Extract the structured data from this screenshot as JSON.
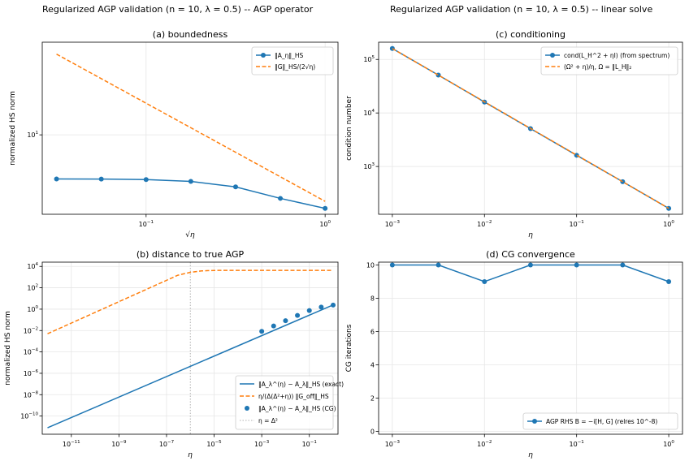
{
  "suptitles": {
    "left": "Regularized AGP validation (n = 10, λ = 0.5) -- AGP operator",
    "right": "Regularized AGP validation (n = 10, λ = 0.5) -- linear solve"
  },
  "colors": {
    "blue": "#1f77b4",
    "orange": "#ff7f0e",
    "grid": "#e6e6e6",
    "vline": "#b0b0b0"
  },
  "chart_data": [
    {
      "id": "a",
      "type": "line",
      "title": "(a) boundedness",
      "xlabel": "√η",
      "ylabel": "normalized HS norm",
      "xscale": "log",
      "yscale": "log",
      "xlim": [
        0.0263,
        1.18
      ],
      "ylim": [
        1.55,
        88
      ],
      "xticks": [
        {
          "v": 0.1,
          "label": "10^-1"
        },
        {
          "v": 1,
          "label": "10^0"
        }
      ],
      "yticks": [
        {
          "v": 10,
          "label": "10^1"
        }
      ],
      "grid": true,
      "legend": "top-right",
      "series": [
        {
          "name": "‖A_η‖_HS",
          "style": "line-marker",
          "color": "#1f77b4",
          "x": [
            0.0316,
            0.0562,
            0.1,
            0.1778,
            0.3162,
            0.5623,
            1.0
          ],
          "y": [
            3.55,
            3.54,
            3.5,
            3.35,
            2.95,
            2.25,
            1.78
          ]
        },
        {
          "name": "‖G‖_HS/(2√η)",
          "style": "dashed",
          "color": "#ff7f0e",
          "x": [
            0.0316,
            1.0
          ],
          "y": [
            66.5,
            2.1
          ]
        }
      ]
    },
    {
      "id": "c",
      "type": "line",
      "title": "(c) conditioning",
      "xlabel": "η",
      "ylabel": "condition number",
      "xscale": "log",
      "yscale": "log",
      "xlim": [
        0.00071,
        1.41
      ],
      "ylim": [
        128,
        210000
      ],
      "xticks": [
        {
          "v": 0.001,
          "label": "10^-3"
        },
        {
          "v": 0.01,
          "label": "10^-2"
        },
        {
          "v": 0.1,
          "label": "10^-1"
        },
        {
          "v": 1,
          "label": "10^0"
        }
      ],
      "yticks": [
        {
          "v": 1000,
          "label": "10^3"
        },
        {
          "v": 10000,
          "label": "10^4"
        },
        {
          "v": 100000,
          "label": "10^5"
        }
      ],
      "grid": true,
      "legend": "top-right",
      "series": [
        {
          "name": "cond(L_H^2 + ηI) (from spectrum)",
          "style": "line-marker",
          "color": "#1f77b4",
          "x": [
            0.001,
            0.00316,
            0.01,
            0.0316,
            0.1,
            0.316,
            1.0
          ],
          "y": [
            160000,
            51000,
            16000,
            5100,
            1620,
            520,
            165
          ]
        },
        {
          "name": "(Ω² + η)/η,  Ω = ‖L_H‖₂",
          "style": "dashed",
          "color": "#ff7f0e",
          "x": [
            0.001,
            1.0
          ],
          "y": [
            160000,
            165
          ]
        }
      ]
    },
    {
      "id": "b",
      "type": "line",
      "title": "(b) distance to true AGP",
      "xlabel": "η",
      "ylabel": "normalized HS norm",
      "xscale": "log",
      "yscale": "log",
      "xlim": [
        6e-13,
        1.6
      ],
      "ylim": [
        2e-12,
        25000
      ],
      "xticks": [
        {
          "v": 1e-11,
          "label": "10^-11"
        },
        {
          "v": 1e-09,
          "label": "10^-9"
        },
        {
          "v": 1e-07,
          "label": "10^-7"
        },
        {
          "v": 1e-05,
          "label": "10^-5"
        },
        {
          "v": 0.001,
          "label": "10^-3"
        },
        {
          "v": 0.1,
          "label": "10^-1"
        }
      ],
      "yticks": [
        {
          "v": 1e-10,
          "label": "10^-10"
        },
        {
          "v": 1e-08,
          "label": "10^-8"
        },
        {
          "v": 1e-06,
          "label": "10^-6"
        },
        {
          "v": 0.0001,
          "label": "10^-4"
        },
        {
          "v": 0.01,
          "label": "10^-2"
        },
        {
          "v": 1,
          "label": "10^0"
        },
        {
          "v": 100,
          "label": "10^2"
        },
        {
          "v": 10000,
          "label": "10^4"
        }
      ],
      "grid": true,
      "legend": "bottom-right",
      "vline": {
        "x": 1e-06,
        "name": "η = Δ²"
      },
      "series": [
        {
          "name": "‖A_λ^(η) − A_λ‖_HS (exact)",
          "style": "line",
          "color": "#1f77b4",
          "x": [
            1e-12,
            1.0
          ],
          "y": [
            8e-12,
            2.5
          ]
        },
        {
          "name": "η/(Δ(Δ²+η)) ‖G_off‖_HS",
          "style": "dashed",
          "color": "#ff7f0e",
          "x": [
            1e-12,
            1e-09,
            1e-08,
            1e-07,
            3e-07,
            1e-06,
            3e-06,
            1e-05,
            0.0001,
            1.0
          ],
          "y": [
            0.005,
            5,
            50,
            500,
            1500,
            2800,
            3800,
            4200,
            4300,
            4300
          ]
        },
        {
          "name": "‖A_λ^(η) − A_λ‖_HS (CG)",
          "style": "marker",
          "color": "#1f77b4",
          "x": [
            0.001,
            0.00316,
            0.01,
            0.0316,
            0.1,
            0.316,
            1.0
          ],
          "y": [
            0.0085,
            0.027,
            0.083,
            0.26,
            0.75,
            1.55,
            2.4
          ]
        }
      ]
    },
    {
      "id": "d",
      "type": "line",
      "title": "(d) CG convergence",
      "xlabel": "η",
      "ylabel": "CG iterations",
      "xscale": "log",
      "yscale": "linear",
      "xlim": [
        0.00071,
        1.41
      ],
      "ylim": [
        0,
        10
      ],
      "xticks": [
        {
          "v": 0.001,
          "label": "10^-3"
        },
        {
          "v": 0.01,
          "label": "10^-2"
        },
        {
          "v": 0.1,
          "label": "10^-1"
        },
        {
          "v": 1,
          "label": "10^0"
        }
      ],
      "yticks": [
        {
          "v": 0,
          "label": "0"
        },
        {
          "v": 2,
          "label": "2"
        },
        {
          "v": 4,
          "label": "4"
        },
        {
          "v": 6,
          "label": "6"
        },
        {
          "v": 8,
          "label": "8"
        },
        {
          "v": 10,
          "label": "10"
        }
      ],
      "grid": true,
      "legend": "bottom-right",
      "series": [
        {
          "name": "AGP RHS B = −i[H, G] (relres 10^-8)",
          "style": "line-marker",
          "color": "#1f77b4",
          "x": [
            0.001,
            0.00316,
            0.01,
            0.0316,
            0.1,
            0.316,
            1.0
          ],
          "y": [
            10,
            10,
            9,
            10,
            10,
            10,
            9
          ]
        }
      ]
    }
  ]
}
